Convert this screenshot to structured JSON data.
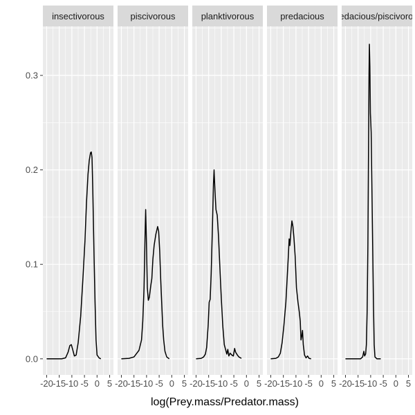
{
  "chart_data": {
    "type": "line",
    "facet_count": 5,
    "xlabel": "log(Prey.mass/Predator.mass)",
    "ylabel": "",
    "xlim": [
      -21.5,
      6.5
    ],
    "ylim": [
      -0.017,
      0.352
    ],
    "x_ticks": [
      -20,
      -15,
      -10,
      -5,
      0,
      5
    ],
    "x_tick_labels": [
      "-20",
      "-15",
      "-10",
      "-5",
      "0",
      "5"
    ],
    "y_ticks": [
      0.0,
      0.1,
      0.2,
      0.3
    ],
    "y_tick_labels": [
      "0.0",
      "0.1",
      "0.2",
      "0.3"
    ],
    "grid": true,
    "line_color": "#000000",
    "panel_background": "#ebebeb",
    "strip_background": "#d9d9d9",
    "series": [
      {
        "name": "insectivorous",
        "points": [
          [
            -20,
            0
          ],
          [
            -14,
            0
          ],
          [
            -12.5,
            0.001
          ],
          [
            -11.5,
            0.007
          ],
          [
            -10.8,
            0.014
          ],
          [
            -10.2,
            0.015
          ],
          [
            -9.6,
            0.009
          ],
          [
            -9,
            0.003
          ],
          [
            -8.3,
            0.004
          ],
          [
            -7.5,
            0.017
          ],
          [
            -6.5,
            0.045
          ],
          [
            -5.5,
            0.09
          ],
          [
            -4.8,
            0.125
          ],
          [
            -4.2,
            0.165
          ],
          [
            -3.6,
            0.195
          ],
          [
            -3.1,
            0.21
          ],
          [
            -2.6,
            0.218
          ],
          [
            -2.3,
            0.219
          ],
          [
            -2,
            0.213
          ],
          [
            -1.7,
            0.18
          ],
          [
            -1.2,
            0.11
          ],
          [
            -0.8,
            0.06
          ],
          [
            -0.4,
            0.02
          ],
          [
            0,
            0.004
          ],
          [
            0.8,
            0.001
          ],
          [
            1.5,
            0
          ]
        ]
      },
      {
        "name": "piscivorous",
        "points": [
          [
            -20,
            0
          ],
          [
            -17,
            0.0005
          ],
          [
            -15,
            0.002
          ],
          [
            -13,
            0.009
          ],
          [
            -12,
            0.02
          ],
          [
            -11.5,
            0.04
          ],
          [
            -11,
            0.075
          ],
          [
            -10.6,
            0.13
          ],
          [
            -10.35,
            0.158
          ],
          [
            -10.1,
            0.13
          ],
          [
            -9.7,
            0.075
          ],
          [
            -9.3,
            0.062
          ],
          [
            -8.9,
            0.065
          ],
          [
            -8.3,
            0.078
          ],
          [
            -7.9,
            0.085
          ],
          [
            -7.5,
            0.105
          ],
          [
            -7,
            0.12
          ],
          [
            -6.3,
            0.132
          ],
          [
            -5.6,
            0.14
          ],
          [
            -5.2,
            0.135
          ],
          [
            -4.8,
            0.115
          ],
          [
            -4.4,
            0.085
          ],
          [
            -4,
            0.06
          ],
          [
            -3.6,
            0.035
          ],
          [
            -3.2,
            0.02
          ],
          [
            -2.7,
            0.008
          ],
          [
            -2,
            0.002
          ],
          [
            -1,
            0
          ]
        ]
      },
      {
        "name": "planktivorous",
        "points": [
          [
            -20,
            0
          ],
          [
            -18,
            0.0005
          ],
          [
            -17,
            0.002
          ],
          [
            -16.3,
            0.005
          ],
          [
            -15.8,
            0.012
          ],
          [
            -15.2,
            0.035
          ],
          [
            -14.8,
            0.06
          ],
          [
            -14.4,
            0.063
          ],
          [
            -14,
            0.09
          ],
          [
            -13.5,
            0.14
          ],
          [
            -13.1,
            0.185
          ],
          [
            -12.85,
            0.2
          ],
          [
            -12.5,
            0.178
          ],
          [
            -12.1,
            0.158
          ],
          [
            -11.6,
            0.152
          ],
          [
            -11.1,
            0.13
          ],
          [
            -10.6,
            0.1
          ],
          [
            -10,
            0.065
          ],
          [
            -9.4,
            0.035
          ],
          [
            -8.8,
            0.015
          ],
          [
            -8.2,
            0.009
          ],
          [
            -7.8,
            0.005
          ],
          [
            -7.4,
            0.01
          ],
          [
            -7,
            0.003
          ],
          [
            -6.5,
            0.006
          ],
          [
            -5.8,
            0.004
          ],
          [
            -5.2,
            0.003
          ],
          [
            -4.7,
            0.011
          ],
          [
            -4.3,
            0.007
          ],
          [
            -3.6,
            0.004
          ],
          [
            -3,
            0.002
          ],
          [
            -2,
            0.0005
          ]
        ]
      },
      {
        "name": "predacious",
        "points": [
          [
            -20,
            0
          ],
          [
            -18,
            0.0005
          ],
          [
            -17,
            0.002
          ],
          [
            -16.2,
            0.006
          ],
          [
            -15.5,
            0.017
          ],
          [
            -14.8,
            0.035
          ],
          [
            -14,
            0.06
          ],
          [
            -13.5,
            0.085
          ],
          [
            -13,
            0.11
          ],
          [
            -12.7,
            0.127
          ],
          [
            -12.4,
            0.12
          ],
          [
            -12,
            0.135
          ],
          [
            -11.6,
            0.146
          ],
          [
            -11.2,
            0.14
          ],
          [
            -10.8,
            0.128
          ],
          [
            -10.3,
            0.108
          ],
          [
            -9.8,
            0.075
          ],
          [
            -9.2,
            0.06
          ],
          [
            -8.7,
            0.05
          ],
          [
            -8.3,
            0.04
          ],
          [
            -8,
            0.02
          ],
          [
            -7.7,
            0.024
          ],
          [
            -7.4,
            0.03
          ],
          [
            -7.1,
            0.015
          ],
          [
            -6.6,
            0.004
          ],
          [
            -6,
            0.001
          ],
          [
            -5.4,
            0.003
          ],
          [
            -4.8,
            0.0005
          ],
          [
            -4,
            0
          ]
        ]
      },
      {
        "name": "predacious/piscivorous",
        "points": [
          [
            -20,
            0
          ],
          [
            -14,
            0
          ],
          [
            -13.2,
            0.002
          ],
          [
            -12.7,
            0.008
          ],
          [
            -12.4,
            0.003
          ],
          [
            -12,
            0.005
          ],
          [
            -11.7,
            0.015
          ],
          [
            -11.4,
            0.05
          ],
          [
            -11.1,
            0.12
          ],
          [
            -10.85,
            0.22
          ],
          [
            -10.65,
            0.3
          ],
          [
            -10.5,
            0.333
          ],
          [
            -10.3,
            0.31
          ],
          [
            -10.1,
            0.26
          ],
          [
            -9.8,
            0.24
          ],
          [
            -9.5,
            0.18
          ],
          [
            -9.2,
            0.12
          ],
          [
            -8.9,
            0.06
          ],
          [
            -8.6,
            0.015
          ],
          [
            -8.3,
            0.002
          ],
          [
            -7.5,
            0
          ],
          [
            -6,
            0
          ]
        ]
      }
    ]
  }
}
